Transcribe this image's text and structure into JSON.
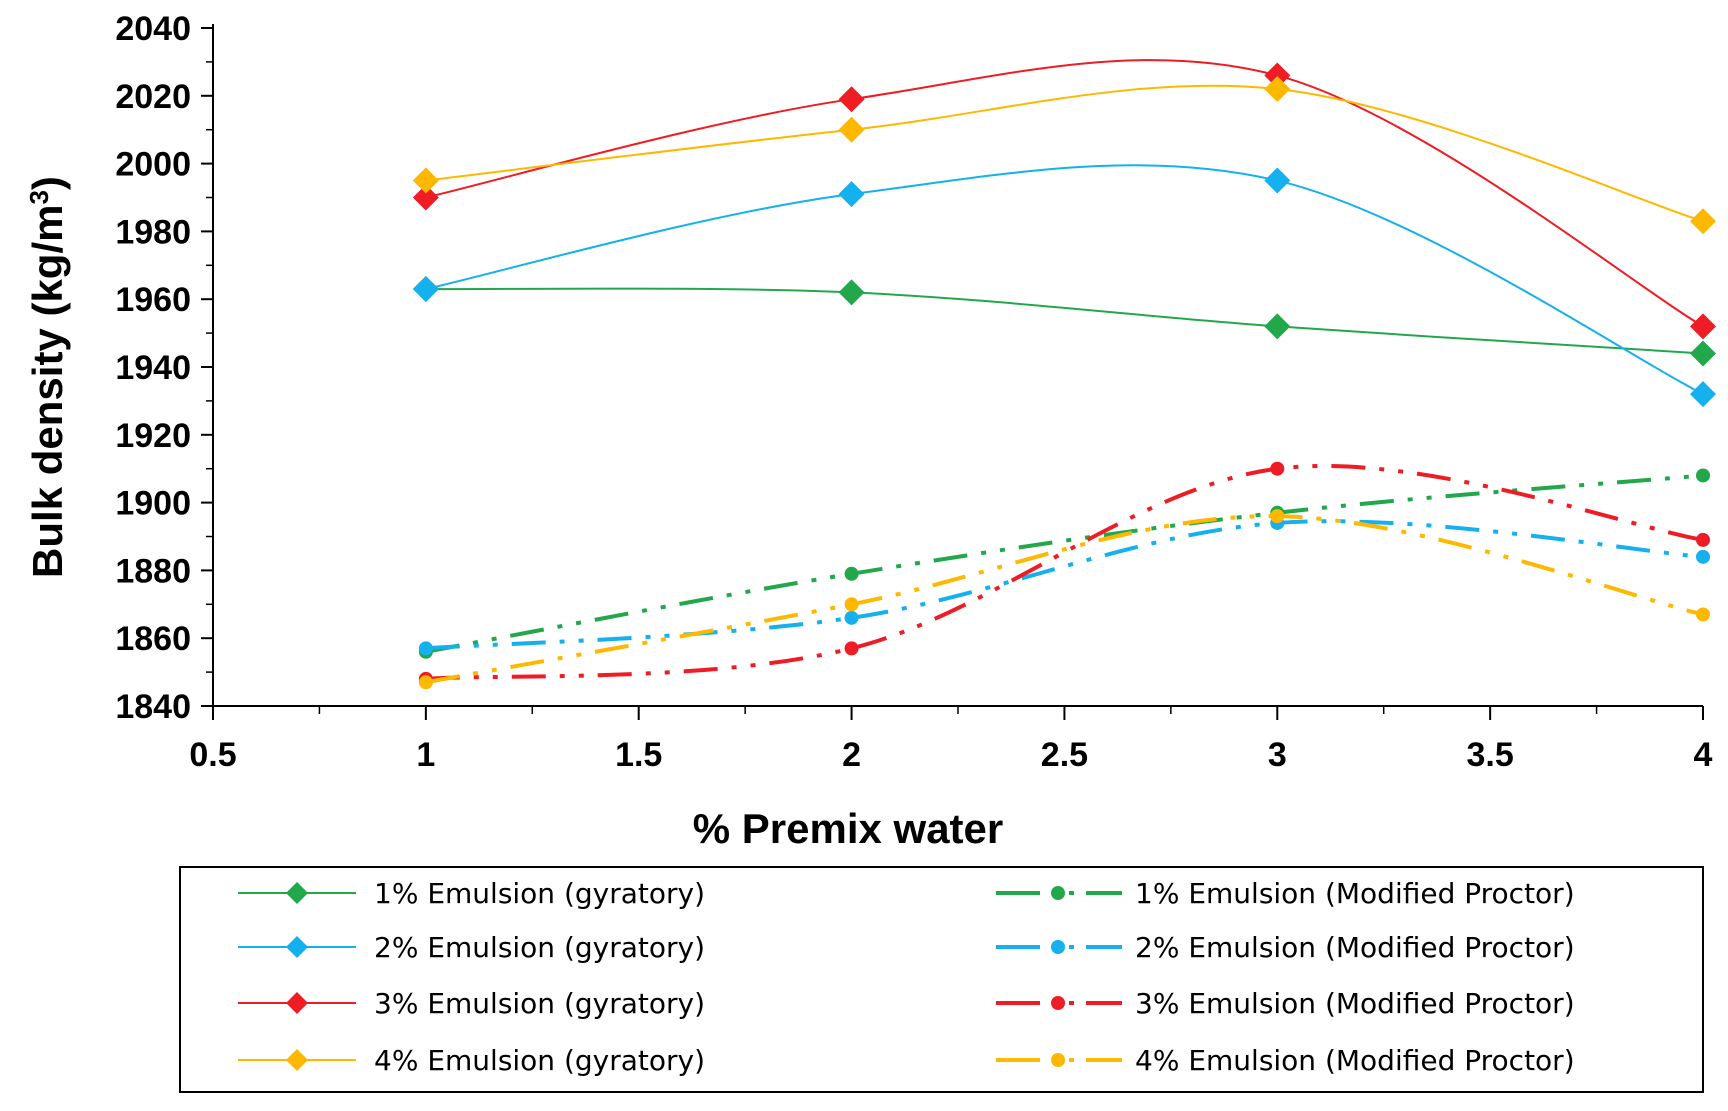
{
  "chart_data": {
    "type": "line",
    "title": "",
    "xlabel": "% Premix water",
    "ylabel_main": "Bulk density (kg/m",
    "ylabel_sup": "3",
    "ylabel_close": ")",
    "xlim": [
      0.5,
      4
    ],
    "ylim": [
      1840,
      2040
    ],
    "x_ticks": [
      0.5,
      1,
      1.5,
      2,
      2.5,
      3,
      3.5,
      4
    ],
    "x_tick_labels": [
      "0.5",
      "1",
      "1.5",
      "2",
      "2.5",
      "3",
      "3.5",
      "4"
    ],
    "y_ticks": [
      1840,
      1860,
      1880,
      1900,
      1920,
      1940,
      1960,
      1980,
      2000,
      2020,
      2040
    ],
    "y_tick_labels": [
      "1840",
      "1860",
      "1880",
      "1900",
      "1920",
      "1940",
      "1960",
      "1980",
      "2000",
      "2020",
      "2040"
    ],
    "grid": false,
    "legend_position": "bottom",
    "x": [
      1,
      2,
      3,
      4
    ],
    "series": [
      {
        "name": "1% Emulsion (gyratory)",
        "color": "#22a84b",
        "style": "solid",
        "marker": "diamond",
        "values": [
          1963,
          1962,
          1952,
          1944
        ]
      },
      {
        "name": "2% Emulsion (gyratory)",
        "color": "#15b0ee",
        "style": "solid",
        "marker": "diamond",
        "values": [
          1963,
          1991,
          1995,
          1932
        ]
      },
      {
        "name": "3% Emulsion (gyratory)",
        "color": "#ee1c24",
        "style": "solid",
        "marker": "diamond",
        "values": [
          1990,
          2019,
          2026,
          1952
        ]
      },
      {
        "name": "4% Emulsion (gyratory)",
        "color": "#ffb800",
        "style": "solid",
        "marker": "diamond",
        "values": [
          1995,
          2010,
          2022,
          1983
        ]
      },
      {
        "name": "1% Emulsion (Modified Proctor)",
        "color": "#22a84b",
        "style": "dash-dot-dot",
        "marker": "circle",
        "values": [
          1856,
          1879,
          1897,
          1908
        ]
      },
      {
        "name": "2% Emulsion (Modified Proctor)",
        "color": "#15b0ee",
        "style": "dash-dot-dot",
        "marker": "circle",
        "values": [
          1857,
          1866,
          1894,
          1884
        ]
      },
      {
        "name": "3% Emulsion (Modified Proctor)",
        "color": "#ee1c24",
        "style": "dash-dot-dot",
        "marker": "circle",
        "values": [
          1848,
          1857,
          1910,
          1889
        ]
      },
      {
        "name": "4% Emulsion (Modified Proctor)",
        "color": "#ffb800",
        "style": "dash-dot-dot",
        "marker": "circle",
        "values": [
          1847,
          1870,
          1896,
          1867
        ]
      }
    ]
  }
}
